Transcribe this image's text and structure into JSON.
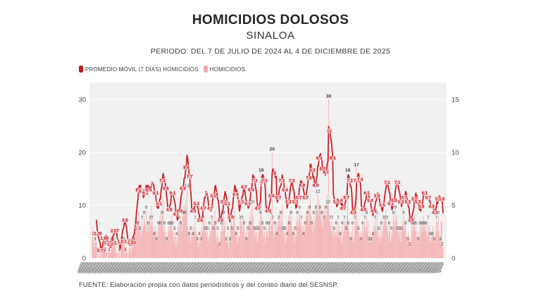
{
  "header": {
    "title": "HOMICIDIOS DOLOSOS",
    "subtitle": "SINALOA",
    "period": "PERIODO: DEL 7 DE JULIO DE 2024 AL 4 DE DICIEMBRE DE 2025"
  },
  "legend": [
    {
      "label": "PROMEDIO MÓVIL (7 DÍAS) HOMICIDIOS",
      "color": "#c4161d"
    },
    {
      "label": "HOMICIDIOS",
      "color": "#f4a7a9"
    }
  ],
  "footer": {
    "source": "FUENTE: Elaboración propia con datos periodísticos y del conteo diario del SESNSP."
  },
  "colors": {
    "line_red": "#cc2128",
    "bar_pink": "#f5b0b1",
    "ma_chip_bg": "#f6d4d5",
    "ma_chip_text": "#c0181f",
    "bar_label_text": "#3a3a3a",
    "plot_bg": "#f1f1f1",
    "gridline": "#ffffff",
    "tick_text": "#424242"
  },
  "chart_data": {
    "type": "bar",
    "title": "HOMICIDIOS DOLOSOS SINALOA",
    "x_start": "7 DE JULIO DE 2024",
    "x_end": "4 DE DICIEMBRE DE 2025",
    "x_tick_labels_visible": false,
    "left_axis": {
      "ticks": [
        0,
        10,
        20,
        30
      ],
      "range": [
        0,
        33
      ],
      "applies_to": "HOMICIDIOS (barras diarias)"
    },
    "right_axis": {
      "ticks": [
        0,
        5,
        10,
        15
      ],
      "range": [
        0,
        16.5
      ],
      "applies_to": "PROMEDIO MÓVIL (7 DÍAS)"
    },
    "visible_peak_values": {
      "daily_max": 30,
      "other_daily_peaks": [
        20,
        17,
        16,
        16
      ],
      "moving_avg_peaks": [
        9.8,
        11.9
      ],
      "first_moving_avg": 3.6,
      "last_moving_avg": 3.3
    },
    "series": [
      {
        "name": "HOMICIDIOS",
        "type": "bar",
        "values": [
          6,
          4,
          3,
          2,
          3,
          4,
          3,
          1,
          0,
          1,
          0,
          2,
          1,
          0,
          2,
          3,
          2,
          3,
          2,
          1,
          2,
          1,
          0,
          1,
          2,
          1,
          1,
          1,
          3,
          2,
          4,
          3,
          2,
          3,
          2,
          1,
          1,
          0,
          1,
          2,
          1,
          0,
          4,
          3,
          5,
          4,
          3,
          4,
          2,
          1,
          2,
          1,
          0,
          1,
          2,
          2,
          2,
          1,
          2,
          3,
          2,
          3,
          4,
          6,
          5,
          8,
          7,
          6,
          9,
          7,
          5,
          6,
          4,
          7,
          5,
          6,
          8,
          7,
          6,
          9,
          5,
          7,
          6,
          5,
          8,
          7,
          6,
          10,
          7,
          5,
          6,
          4,
          5,
          6,
          3,
          5,
          4,
          6,
          7,
          8,
          6,
          9,
          7,
          8,
          11,
          5,
          6,
          4,
          5,
          3,
          4,
          5,
          6,
          5,
          7,
          6,
          8,
          5,
          6,
          4,
          3,
          5,
          4,
          2,
          4,
          3,
          6,
          7,
          5,
          8,
          6,
          7,
          5,
          8,
          9,
          10,
          8,
          11,
          9,
          13,
          6,
          5,
          4,
          6,
          3,
          5,
          4,
          5,
          4,
          6,
          5,
          7,
          4,
          5,
          3,
          4,
          2,
          4,
          3,
          5,
          3,
          6,
          5,
          7,
          8,
          6,
          5,
          7,
          4,
          5,
          3,
          4,
          6,
          4,
          5,
          7,
          6,
          8,
          5,
          7,
          9,
          6,
          4,
          3,
          5,
          4,
          3,
          2,
          4,
          5,
          6,
          7,
          5,
          8,
          6,
          7,
          3,
          4,
          3,
          5,
          2,
          4,
          3,
          6,
          7,
          5,
          6,
          8,
          7,
          9,
          5,
          4,
          6,
          3,
          5,
          4,
          4,
          7,
          8,
          6,
          7,
          5,
          8,
          6,
          4,
          5,
          3,
          6,
          4,
          5,
          7,
          8,
          6,
          9,
          7,
          10,
          8,
          6,
          5,
          4,
          6,
          5,
          3,
          4,
          5,
          7,
          6,
          8,
          16,
          7,
          6,
          5,
          4,
          5,
          3,
          4,
          6,
          5,
          4,
          6,
          7,
          5,
          8,
          6,
          20,
          7,
          5,
          4,
          6,
          5,
          7,
          4,
          6,
          8,
          7,
          9,
          6,
          8,
          7,
          10,
          5,
          6,
          4,
          5,
          3,
          6,
          4,
          7,
          8,
          6,
          9,
          7,
          8,
          6,
          5,
          4,
          6,
          3,
          5,
          4,
          7,
          8,
          6,
          7,
          9,
          8,
          6,
          7,
          5,
          6,
          4,
          7,
          5,
          6,
          8,
          9,
          8,
          10,
          7,
          9,
          11,
          8,
          6,
          7,
          5,
          8,
          6,
          7,
          9,
          10,
          9,
          12,
          8,
          11,
          9,
          10,
          7,
          8,
          6,
          9,
          7,
          10,
          8,
          9,
          8,
          12,
          10,
          30,
          7,
          7,
          6,
          5,
          7,
          4,
          6,
          5,
          4,
          5,
          6,
          4,
          5,
          7,
          5,
          6,
          4,
          5,
          3,
          6,
          4,
          5,
          7,
          6,
          7,
          5,
          8,
          16,
          6,
          5,
          4,
          3,
          5,
          4,
          6,
          3,
          4,
          7,
          6,
          8,
          17,
          6,
          7,
          5,
          4,
          5,
          3,
          5,
          4,
          6,
          5,
          6,
          7,
          5,
          6,
          8,
          5,
          7,
          3,
          4,
          5,
          3,
          4,
          5,
          4,
          6,
          5,
          7,
          6,
          5,
          8,
          6,
          4,
          5,
          3,
          4,
          6,
          4,
          5,
          7,
          6,
          8,
          7,
          9,
          6,
          7,
          5,
          4,
          6,
          5,
          3,
          5,
          4,
          6,
          8,
          7,
          6,
          9,
          7,
          8,
          5,
          6,
          4,
          5,
          6,
          3,
          5,
          7,
          6,
          8,
          5,
          7,
          6,
          4,
          4,
          3,
          5,
          4,
          2,
          4,
          3,
          6,
          5,
          7,
          6,
          8,
          5,
          6,
          4,
          5,
          3,
          4,
          5,
          6,
          4,
          7,
          6,
          5,
          8,
          6,
          7,
          5,
          6,
          5,
          4,
          7,
          5,
          6,
          4,
          3,
          5,
          4,
          6,
          5,
          3,
          4,
          5,
          7,
          7,
          5,
          8,
          5,
          4,
          3,
          7,
          7,
          2,
          2
        ]
      },
      {
        "name": "PROMEDIO MÓVIL (7 DÍAS) HOMICIDIOS",
        "type": "line",
        "derived": "media móvil de 7 días calculada sobre la serie HOMICIDIOS"
      }
    ]
  }
}
